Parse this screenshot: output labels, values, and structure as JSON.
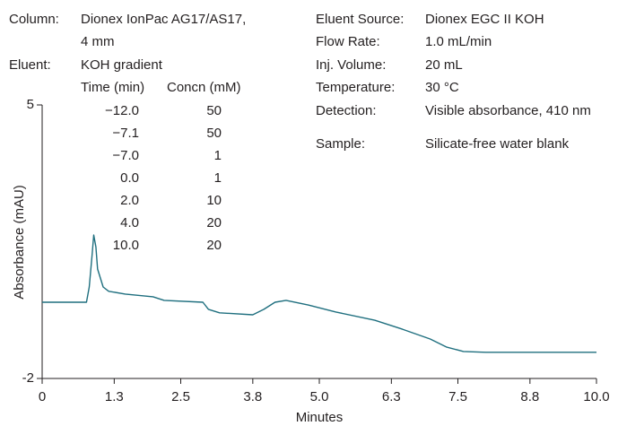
{
  "chart_data": {
    "type": "line",
    "x_label": "Minutes",
    "y_label": "Absorbance (mAU)",
    "xlim": [
      0,
      10
    ],
    "ylim": [
      -2,
      5
    ],
    "xticks": [
      0,
      1.3,
      2.5,
      3.8,
      {
        "value": 5,
        "label": "5.0"
      },
      6.3,
      7.5,
      8.8,
      {
        "value": 10,
        "label": "10.0"
      }
    ],
    "yticks": [
      -2,
      5
    ],
    "x": [
      0,
      0.8,
      0.85,
      0.9,
      0.93,
      0.97,
      1.0,
      1.1,
      1.2,
      1.5,
      2.0,
      2.2,
      2.9,
      3.0,
      3.2,
      3.8,
      4.0,
      4.2,
      4.4,
      4.8,
      5.3,
      6.0,
      6.5,
      7.0,
      7.3,
      7.6,
      8.0,
      9.0,
      10.0
    ],
    "series": [
      {
        "color": "#1f6f7f",
        "values": [
          -0.05,
          -0.05,
          0.34,
          1.14,
          1.67,
          1.37,
          0.8,
          0.34,
          0.23,
          0.16,
          0.09,
          0.0,
          -0.05,
          -0.23,
          -0.32,
          -0.37,
          -0.23,
          -0.05,
          0.0,
          -0.12,
          -0.3,
          -0.51,
          -0.74,
          -0.99,
          -1.2,
          -1.31,
          -1.33,
          -1.33,
          -1.33
        ]
      }
    ],
    "conditions_left": [
      {
        "label": "Column:",
        "lines": [
          "Dionex IonPac AG17/AS17,",
          "4 mm"
        ]
      },
      {
        "label": "Eluent:",
        "lines": [
          "KOH gradient"
        ]
      }
    ],
    "gradient": {
      "header": [
        "Time (min)",
        "Concn (mM)"
      ],
      "rows": [
        [
          "−12.0",
          "50"
        ],
        [
          "−7.1",
          "50"
        ],
        [
          "−7.0",
          "1"
        ],
        [
          "0.0",
          "1"
        ],
        [
          "2.0",
          "10"
        ],
        [
          "4.0",
          "20"
        ],
        [
          "10.0",
          "20"
        ]
      ]
    },
    "conditions_right": [
      {
        "label": "Eluent Source:",
        "value": "Dionex EGC II KOH"
      },
      {
        "label": "Flow Rate:",
        "value": "1.0 mL/min"
      },
      {
        "label": "Inj. Volume:",
        "value": "20 mL"
      },
      {
        "label": "Temperature:",
        "value": "30 °C"
      },
      {
        "label": "Detection:",
        "value": "Visible absorbance, 410 nm"
      },
      {
        "label": "Sample:",
        "value": "Silicate-free water blank"
      }
    ]
  }
}
